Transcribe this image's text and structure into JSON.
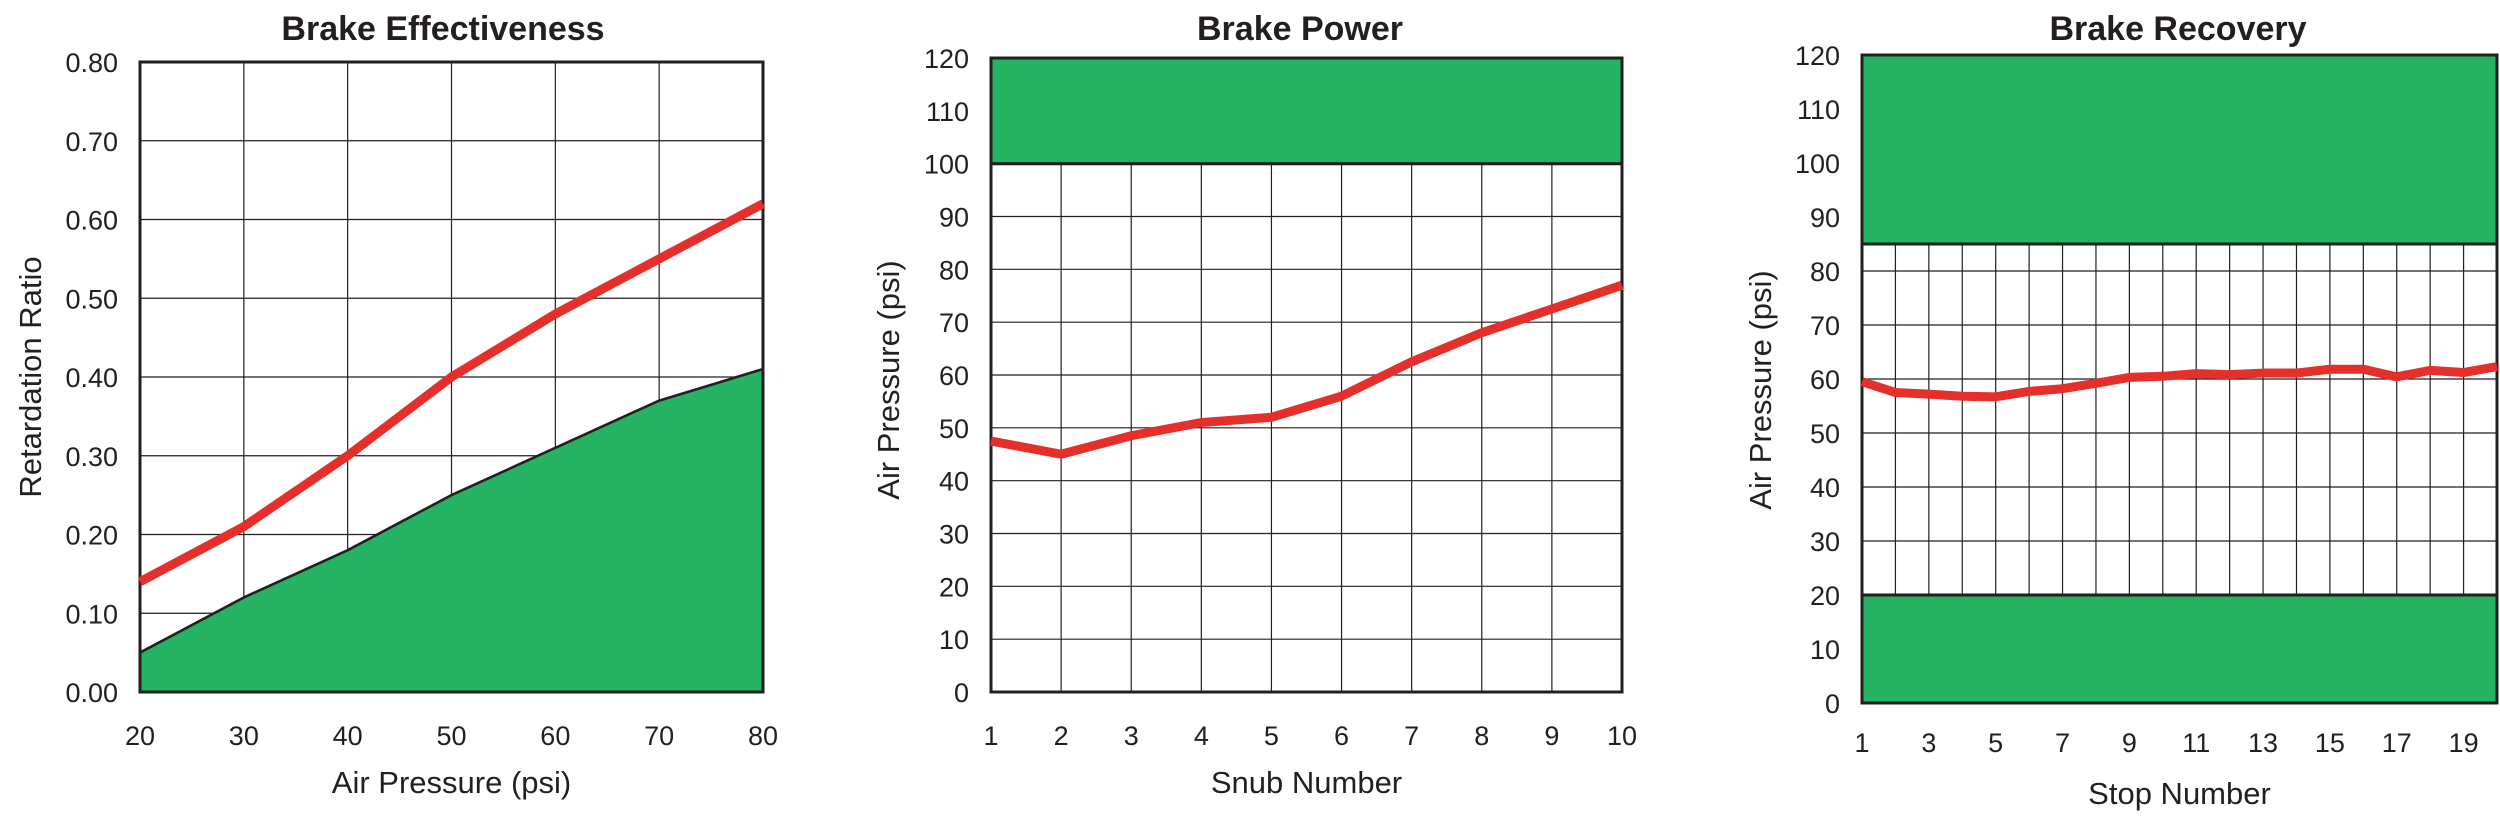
{
  "colors": {
    "band": "#25b263",
    "line": "#e52f2b",
    "ink": "#231f20",
    "background": "#ffffff"
  },
  "chart_data": [
    {
      "type": "line",
      "title": "Brake Effectiveness",
      "xlabel": "Air Pressure (psi)",
      "ylabel": "Retardation Ratio",
      "xlim": [
        20,
        80
      ],
      "ylim": [
        0,
        0.8
      ],
      "x_ticks": [
        "20",
        "30",
        "40",
        "50",
        "60",
        "70",
        "80"
      ],
      "y_ticks": [
        "0.00",
        "0.10",
        "0.20",
        "0.30",
        "0.40",
        "0.50",
        "0.60",
        "0.70",
        "0.80"
      ],
      "grid": true,
      "x": [
        20,
        30,
        40,
        50,
        60,
        70,
        80
      ],
      "series": [
        {
          "values": [
            0.14,
            0.21,
            0.3,
            0.4,
            0.48,
            0.55,
            0.62
          ],
          "style": "red-line"
        }
      ],
      "shaded_area": {
        "x": [
          20,
          30,
          40,
          50,
          60,
          70,
          80
        ],
        "upper": [
          0.05,
          0.12,
          0.18,
          0.25,
          0.31,
          0.37,
          0.41
        ],
        "lower": 0
      }
    },
    {
      "type": "line",
      "title": "Brake Power",
      "xlabel": "Snub Number",
      "ylabel": "Air Pressure (psi)",
      "xlim": [
        1,
        10
      ],
      "ylim": [
        0,
        120
      ],
      "x_ticks": [
        "1",
        "2",
        "3",
        "4",
        "5",
        "6",
        "7",
        "8",
        "9",
        "10"
      ],
      "y_ticks": [
        "0",
        "10",
        "20",
        "30",
        "40",
        "50",
        "60",
        "70",
        "80",
        "90",
        "100",
        "110",
        "120"
      ],
      "grid": true,
      "x": [
        1,
        2,
        3,
        4,
        5,
        6,
        7,
        8,
        9,
        10
      ],
      "series": [
        {
          "values": [
            47.5,
            45,
            48.5,
            51,
            52,
            56,
            62.5,
            68,
            72.5,
            77
          ],
          "style": "red-line"
        }
      ],
      "bands": [
        {
          "from": 100,
          "to": 120
        }
      ]
    },
    {
      "type": "line",
      "title": "Brake Recovery",
      "xlabel": "Stop Number",
      "ylabel": "Air Pressure (psi)",
      "xlim": [
        1,
        20
      ],
      "ylim": [
        0,
        120
      ],
      "x_ticks": [
        "1",
        "3",
        "5",
        "7",
        "9",
        "11",
        "13",
        "15",
        "17",
        "19"
      ],
      "x_tick_values": [
        1,
        3,
        5,
        7,
        9,
        11,
        13,
        15,
        17,
        19
      ],
      "y_ticks": [
        "0",
        "10",
        "20",
        "30",
        "40",
        "50",
        "60",
        "70",
        "80",
        "90",
        "100",
        "110",
        "120"
      ],
      "grid": true,
      "x_grid_step": 1,
      "x": [
        1,
        2,
        3,
        4,
        5,
        6,
        7,
        8,
        9,
        10,
        11,
        12,
        13,
        14,
        15,
        16,
        17,
        18,
        19,
        20
      ],
      "series": [
        {
          "values": [
            59.5,
            57.5,
            57.2,
            56.8,
            56.7,
            57.7,
            58.2,
            59.2,
            60.3,
            60.5,
            61,
            60.8,
            61.1,
            61.1,
            61.8,
            61.8,
            60.4,
            61.6,
            61.2,
            62.3
          ],
          "style": "red-line"
        }
      ],
      "bands": [
        {
          "from": 85,
          "to": 120
        },
        {
          "from": 0,
          "to": 20
        }
      ]
    }
  ]
}
